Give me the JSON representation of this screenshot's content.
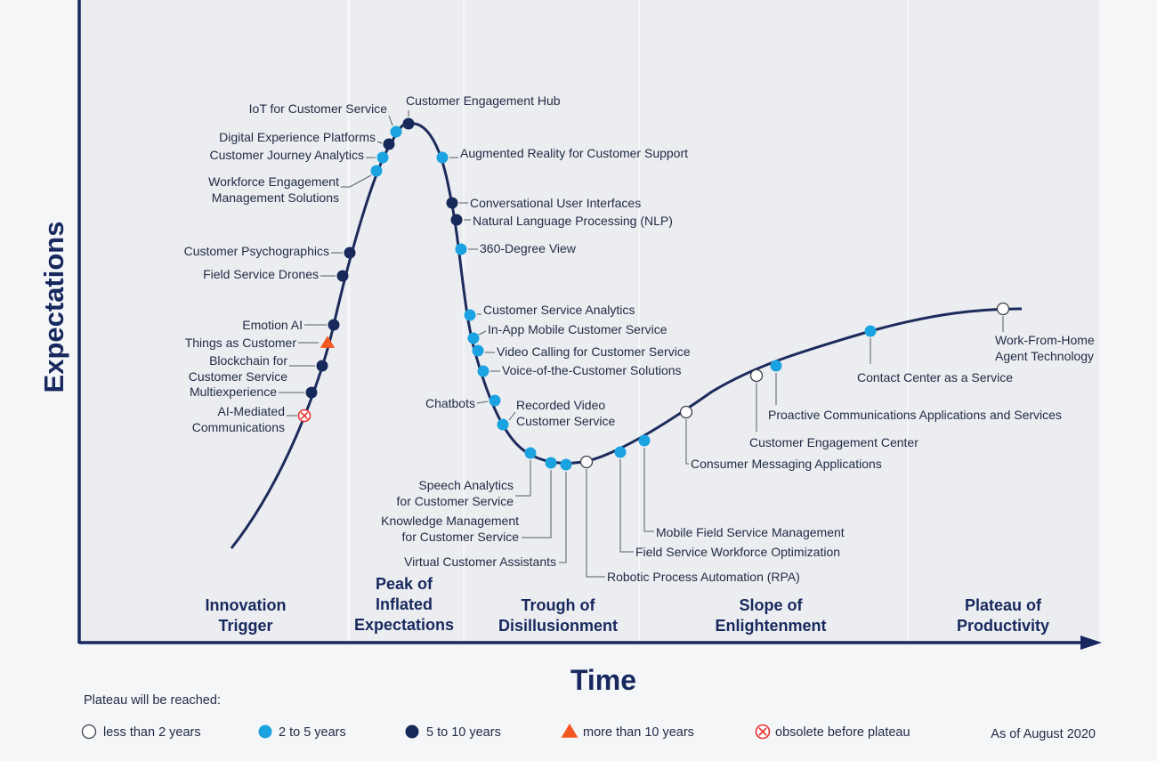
{
  "axes": {
    "x_title": "Time",
    "y_title": "Expectations"
  },
  "phases": [
    {
      "lines": [
        "Innovation",
        "Trigger"
      ]
    },
    {
      "lines": [
        "Peak of",
        "Inflated",
        "Expectations"
      ]
    },
    {
      "lines": [
        "Trough of",
        "Disillusionment"
      ]
    },
    {
      "lines": [
        "Slope of",
        "Enlightenment"
      ]
    },
    {
      "lines": [
        "Plateau of",
        "Productivity"
      ]
    }
  ],
  "technologies": [
    {
      "lines": [
        "AI-Mediated",
        "Communications"
      ],
      "category": "obsolete"
    },
    {
      "lines": [
        "Multiexperience"
      ],
      "category": "5to10"
    },
    {
      "lines": [
        "Blockchain for",
        "Customer Service"
      ],
      "category": "5to10"
    },
    {
      "lines": [
        "Things as Customer"
      ],
      "category": "more10"
    },
    {
      "lines": [
        "Emotion AI"
      ],
      "category": "5to10"
    },
    {
      "lines": [
        "Field Service Drones"
      ],
      "category": "5to10"
    },
    {
      "lines": [
        "Customer Psychographics"
      ],
      "category": "5to10"
    },
    {
      "lines": [
        "Workforce Engagement",
        "Management Solutions"
      ],
      "category": "2to5"
    },
    {
      "lines": [
        "Customer Journey Analytics"
      ],
      "category": "2to5"
    },
    {
      "lines": [
        "Digital Experience Platforms"
      ],
      "category": "5to10"
    },
    {
      "lines": [
        "IoT for Customer Service"
      ],
      "category": "2to5"
    },
    {
      "lines": [
        "Customer Engagement Hub"
      ],
      "category": "5to10"
    },
    {
      "lines": [
        "Augmented Reality for Customer Support"
      ],
      "category": "2to5"
    },
    {
      "lines": [
        "Conversational User Interfaces"
      ],
      "category": "5to10"
    },
    {
      "lines": [
        "Natural Language Processing (NLP)"
      ],
      "category": "5to10"
    },
    {
      "lines": [
        "360-Degree View"
      ],
      "category": "2to5"
    },
    {
      "lines": [
        "Customer Service Analytics"
      ],
      "category": "2to5"
    },
    {
      "lines": [
        "In-App Mobile Customer Service"
      ],
      "category": "2to5"
    },
    {
      "lines": [
        "Video Calling for Customer Service"
      ],
      "category": "2to5"
    },
    {
      "lines": [
        "Voice-of-the-Customer Solutions"
      ],
      "category": "2to5"
    },
    {
      "lines": [
        "Chatbots"
      ],
      "category": "2to5"
    },
    {
      "lines": [
        "Recorded Video",
        "Customer Service"
      ],
      "category": "2to5"
    },
    {
      "lines": [
        "Speech Analytics",
        "for Customer Service"
      ],
      "category": "2to5"
    },
    {
      "lines": [
        "Knowledge Management",
        "for Customer Service"
      ],
      "category": "2to5"
    },
    {
      "lines": [
        "Virtual Customer Assistants"
      ],
      "category": "2to5"
    },
    {
      "lines": [
        "Robotic Process Automation (RPA)"
      ],
      "category": "lt2"
    },
    {
      "lines": [
        "Field Service Workforce Optimization"
      ],
      "category": "2to5"
    },
    {
      "lines": [
        "Mobile Field Service Management"
      ],
      "category": "2to5"
    },
    {
      "lines": [
        "Consumer Messaging Applications"
      ],
      "category": "lt2"
    },
    {
      "lines": [
        "Customer Engagement Center"
      ],
      "category": "lt2"
    },
    {
      "lines": [
        "Proactive Communications Applications and Services"
      ],
      "category": "2to5"
    },
    {
      "lines": [
        "Contact Center as a Service"
      ],
      "category": "2to5"
    },
    {
      "lines": [
        "Work-From-Home",
        "Agent Technology"
      ],
      "category": "lt2"
    }
  ],
  "legend": {
    "title": "Plateau will be reached:",
    "items": [
      {
        "category": "lt2",
        "label": "less than 2 years"
      },
      {
        "category": "2to5",
        "label": "2 to 5 years"
      },
      {
        "category": "5to10",
        "label": "5 to 10 years"
      },
      {
        "category": "more10",
        "label": "more than 10 years"
      },
      {
        "category": "obsolete",
        "label": "obsolete before plateau"
      }
    ],
    "as_of": "As of August 2020"
  },
  "colors": {
    "navy": "#17285e",
    "curve": "#1c2b5c",
    "lt2": "#ffffff",
    "2to5": "#1aa3e0",
    "5to10": "#16295a",
    "more10": "#f2581f",
    "obsolete": "#e8322f"
  }
}
